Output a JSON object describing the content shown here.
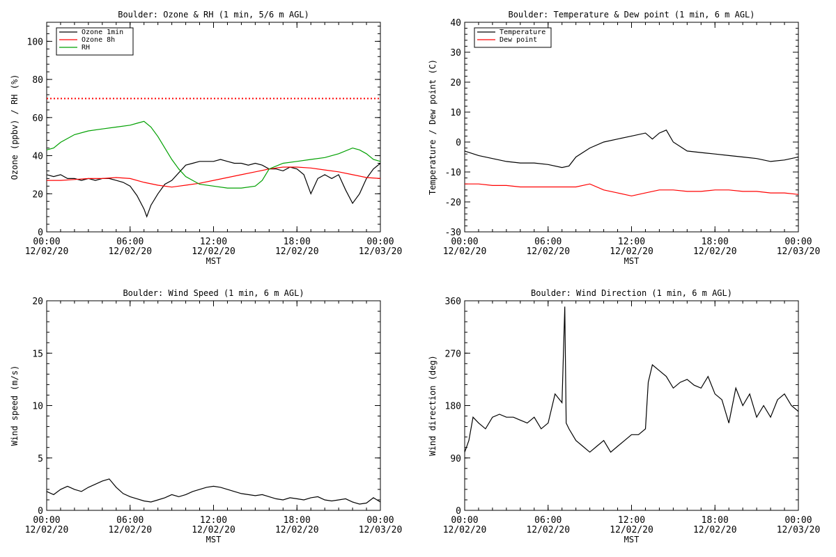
{
  "colors": {
    "background": "#ffffff",
    "axis": "#000000",
    "black": "#000000",
    "red": "#ff0000",
    "green": "#00a000"
  },
  "chart_data": [
    {
      "type": "line",
      "title": "Boulder: Ozone & RH (1 min, 5/6 m AGL)",
      "xlabel": "MST",
      "ylabel": "Ozone (ppbv) / RH (%)",
      "xlim": [
        0,
        24
      ],
      "ylim": [
        0,
        110
      ],
      "yticks": [
        0,
        20,
        40,
        60,
        80,
        100
      ],
      "xticks": [
        {
          "value": 0,
          "time": "00:00",
          "date": "12/02/20"
        },
        {
          "value": 6,
          "time": "06:00",
          "date": "12/02/20"
        },
        {
          "value": 12,
          "time": "12:00",
          "date": "12/02/20"
        },
        {
          "value": 18,
          "time": "18:00",
          "date": "12/02/20"
        },
        {
          "value": 24,
          "time": "00:00",
          "date": "12/03/20"
        }
      ],
      "legend": "top-left",
      "reference_lines": [
        {
          "y": 70,
          "color": "#ff0000",
          "style": "dotted"
        }
      ],
      "series": [
        {
          "name": "Ozone 1min",
          "color": "#000000",
          "x": [
            0,
            0.5,
            1,
            1.5,
            2,
            2.5,
            3,
            3.5,
            4,
            4.5,
            5,
            5.5,
            6,
            6.5,
            7,
            7.2,
            7.5,
            8,
            8.5,
            9,
            9.5,
            10,
            10.5,
            11,
            11.5,
            12,
            12.5,
            13,
            13.5,
            14,
            14.5,
            15,
            15.5,
            16,
            16.5,
            17,
            17.5,
            18,
            18.5,
            19,
            19.5,
            20,
            20.5,
            21,
            21.5,
            22,
            22.5,
            23,
            23.5,
            24
          ],
          "y": [
            30,
            29,
            30,
            28,
            28,
            27,
            28,
            27,
            28,
            28,
            27,
            26,
            24,
            19,
            12,
            8,
            14,
            20,
            25,
            27,
            31,
            35,
            36,
            37,
            37,
            37,
            38,
            37,
            36,
            36,
            35,
            36,
            35,
            33,
            33,
            32,
            34,
            33,
            30,
            20,
            28,
            30,
            28,
            30,
            22,
            15,
            20,
            28,
            33,
            36
          ]
        },
        {
          "name": "Ozone 8h",
          "color": "#ff0000",
          "x": [
            0,
            1,
            2,
            3,
            4,
            5,
            6,
            7,
            8,
            9,
            10,
            11,
            12,
            13,
            14,
            15,
            16,
            17,
            18,
            19,
            20,
            21,
            22,
            23,
            24
          ],
          "y": [
            27,
            27,
            27.5,
            28,
            28,
            28.5,
            28,
            26,
            24.5,
            23.5,
            24.5,
            25.5,
            27,
            28.5,
            30,
            31.5,
            33,
            34,
            34,
            33.5,
            32.5,
            31.5,
            30,
            28.5,
            28
          ]
        },
        {
          "name": "RH",
          "color": "#00a000",
          "x": [
            0,
            0.5,
            1,
            2,
            3,
            4,
            5,
            6,
            6.5,
            7,
            7.5,
            8,
            8.5,
            9,
            9.5,
            10,
            10.5,
            11,
            12,
            13,
            14,
            15,
            15.5,
            16,
            17,
            18,
            19,
            20,
            21,
            22,
            22.5,
            23,
            23.5,
            24
          ],
          "y": [
            43,
            44,
            47,
            51,
            53,
            54,
            55,
            56,
            57,
            58,
            55,
            50,
            44,
            38,
            33,
            29,
            27,
            25,
            24,
            23,
            23,
            24,
            27,
            33,
            36,
            37,
            38,
            39,
            41,
            44,
            43,
            41,
            38,
            37
          ]
        }
      ]
    },
    {
      "type": "line",
      "title": "Boulder: Temperature & Dew point (1 min, 6 m AGL)",
      "xlabel": "MST",
      "ylabel": "Temperature / Dew point (C)",
      "xlim": [
        0,
        24
      ],
      "ylim": [
        -30,
        40
      ],
      "yticks": [
        -30,
        -20,
        -10,
        0,
        10,
        20,
        30,
        40
      ],
      "xticks": [
        {
          "value": 0,
          "time": "00:00",
          "date": "12/02/20"
        },
        {
          "value": 6,
          "time": "06:00",
          "date": "12/02/20"
        },
        {
          "value": 12,
          "time": "12:00",
          "date": "12/02/20"
        },
        {
          "value": 18,
          "time": "18:00",
          "date": "12/02/20"
        },
        {
          "value": 24,
          "time": "00:00",
          "date": "12/03/20"
        }
      ],
      "legend": "top-left",
      "series": [
        {
          "name": "Temperature",
          "color": "#000000",
          "x": [
            0,
            1,
            2,
            3,
            4,
            5,
            6,
            7,
            7.5,
            8,
            9,
            10,
            11,
            12,
            13,
            13.5,
            14,
            14.5,
            15,
            16,
            17,
            18,
            19,
            20,
            21,
            22,
            23,
            24
          ],
          "y": [
            -3,
            -4.5,
            -5.5,
            -6.5,
            -7,
            -7,
            -7.5,
            -8.5,
            -8,
            -5,
            -2,
            0,
            1,
            2,
            3,
            1,
            3,
            4,
            0,
            -3,
            -3.5,
            -4,
            -4.5,
            -5,
            -5.5,
            -6.5,
            -6,
            -5
          ]
        },
        {
          "name": "Dew point",
          "color": "#ff0000",
          "x": [
            0,
            1,
            2,
            3,
            4,
            5,
            6,
            7,
            8,
            9,
            10,
            11,
            12,
            13,
            14,
            15,
            16,
            17,
            18,
            19,
            20,
            21,
            22,
            23,
            24
          ],
          "y": [
            -14,
            -14,
            -14.5,
            -14.5,
            -15,
            -15,
            -15,
            -15,
            -15,
            -14,
            -16,
            -17,
            -18,
            -17,
            -16,
            -16,
            -16.5,
            -16.5,
            -16,
            -16,
            -16.5,
            -16.5,
            -17,
            -17,
            -17.5
          ]
        }
      ]
    },
    {
      "type": "line",
      "title": "Boulder: Wind Speed (1 min, 6 m AGL)",
      "xlabel": "MST",
      "ylabel": "Wind speed (m/s)",
      "xlim": [
        0,
        24
      ],
      "ylim": [
        0,
        20
      ],
      "yticks": [
        0,
        5,
        10,
        15,
        20
      ],
      "xticks": [
        {
          "value": 0,
          "time": "00:00",
          "date": "12/02/20"
        },
        {
          "value": 6,
          "time": "06:00",
          "date": "12/02/20"
        },
        {
          "value": 12,
          "time": "12:00",
          "date": "12/02/20"
        },
        {
          "value": 18,
          "time": "18:00",
          "date": "12/02/20"
        },
        {
          "value": 24,
          "time": "00:00",
          "date": "12/03/20"
        }
      ],
      "series": [
        {
          "color": "#000000",
          "x": [
            0,
            0.5,
            1,
            1.5,
            2,
            2.5,
            3,
            3.5,
            4,
            4.5,
            5,
            5.5,
            6,
            6.5,
            7,
            7.5,
            8,
            8.5,
            9,
            9.5,
            10,
            10.5,
            11,
            11.5,
            12,
            12.5,
            13,
            13.5,
            14,
            14.5,
            15,
            15.5,
            16,
            16.5,
            17,
            17.5,
            18,
            18.5,
            19,
            19.5,
            20,
            20.5,
            21,
            21.5,
            22,
            22.5,
            23,
            23.5,
            24
          ],
          "y": [
            1.8,
            1.5,
            2.0,
            2.3,
            2.0,
            1.8,
            2.2,
            2.5,
            2.8,
            3.0,
            2.2,
            1.6,
            1.3,
            1.1,
            0.9,
            0.8,
            1.0,
            1.2,
            1.5,
            1.3,
            1.5,
            1.8,
            2.0,
            2.2,
            2.3,
            2.2,
            2.0,
            1.8,
            1.6,
            1.5,
            1.4,
            1.5,
            1.3,
            1.1,
            1.0,
            1.2,
            1.1,
            1.0,
            1.2,
            1.3,
            1.0,
            0.9,
            1.0,
            1.1,
            0.8,
            0.6,
            0.7,
            1.2,
            0.8
          ]
        }
      ]
    },
    {
      "type": "line",
      "title": "Boulder: Wind Direction (1 min, 6 m AGL)",
      "xlabel": "MST",
      "ylabel": "Wind direction (deg)",
      "xlim": [
        0,
        24
      ],
      "ylim": [
        0,
        360
      ],
      "yticks": [
        0,
        90,
        180,
        270,
        360
      ],
      "xticks": [
        {
          "value": 0,
          "time": "00:00",
          "date": "12/02/20"
        },
        {
          "value": 6,
          "time": "06:00",
          "date": "12/02/20"
        },
        {
          "value": 12,
          "time": "12:00",
          "date": "12/02/20"
        },
        {
          "value": 18,
          "time": "18:00",
          "date": "12/02/20"
        },
        {
          "value": 24,
          "time": "00:00",
          "date": "12/03/20"
        }
      ],
      "series": [
        {
          "color": "#000000",
          "x": [
            0,
            0.3,
            0.6,
            1,
            1.5,
            2,
            2.5,
            3,
            3.5,
            4,
            4.5,
            5,
            5.5,
            6,
            6.5,
            7,
            7.2,
            7.3,
            7.5,
            8,
            8.5,
            9,
            9.5,
            10,
            10.5,
            11,
            11.5,
            12,
            12.5,
            13,
            13.2,
            13.5,
            14,
            14.5,
            15,
            15.5,
            16,
            16.5,
            17,
            17.5,
            18,
            18.5,
            19,
            19.5,
            20,
            20.5,
            21,
            21.5,
            22,
            22.5,
            23,
            23.5,
            24
          ],
          "y": [
            100,
            120,
            160,
            150,
            140,
            160,
            165,
            160,
            160,
            155,
            150,
            160,
            140,
            150,
            200,
            185,
            350,
            150,
            140,
            120,
            110,
            100,
            110,
            120,
            100,
            110,
            120,
            130,
            130,
            140,
            220,
            250,
            240,
            230,
            210,
            220,
            225,
            215,
            210,
            230,
            200,
            190,
            150,
            210,
            180,
            200,
            160,
            180,
            160,
            190,
            200,
            180,
            170
          ]
        }
      ]
    }
  ]
}
